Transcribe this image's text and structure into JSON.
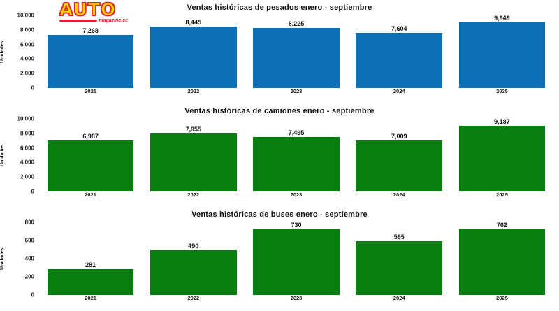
{
  "logo": {
    "title": "AUTO",
    "subtitle": "magazine.ec",
    "accent_red": "#e31e24",
    "accent_yellow": "#ffd400"
  },
  "chart_data": [
    {
      "type": "bar",
      "title": "Ventas históricas de pesados enero - septiembre",
      "xlabel": "",
      "ylabel": "Unidades",
      "categories": [
        "2021",
        "2022",
        "2023",
        "2024",
        "2025"
      ],
      "values": [
        7268,
        8445,
        8225,
        7604,
        9949
      ],
      "value_labels": [
        "7,268",
        "8,445",
        "8,225",
        "7,604",
        "9,949"
      ],
      "ylim": [
        0,
        10000
      ],
      "yticks": [
        {
          "label": "0",
          "value": 0
        },
        {
          "label": "2,000",
          "value": 2000
        },
        {
          "label": "4,000",
          "value": 4000
        },
        {
          "label": "6,000",
          "value": 6000
        },
        {
          "label": "8,000",
          "value": 8000
        },
        {
          "label": "10,000",
          "value": 10000
        }
      ],
      "bar_color": "#0e6fb4",
      "grid": false,
      "legend": "none"
    },
    {
      "type": "bar",
      "title": "Ventas históricas de camiones enero - septiembre",
      "xlabel": "",
      "ylabel": "Unidades",
      "categories": [
        "2021",
        "2022",
        "2023",
        "2024",
        "2025"
      ],
      "values": [
        6987,
        7955,
        7495,
        7009,
        9187
      ],
      "value_labels": [
        "6,987",
        "7,955",
        "7,495",
        "7,009",
        "9,187"
      ],
      "ylim": [
        0,
        10000
      ],
      "yticks": [
        {
          "label": "0",
          "value": 0
        },
        {
          "label": "2,000",
          "value": 2000
        },
        {
          "label": "4,000",
          "value": 4000
        },
        {
          "label": "6,000",
          "value": 6000
        },
        {
          "label": "8,000",
          "value": 8000
        },
        {
          "label": "10,000",
          "value": 10000
        }
      ],
      "bar_color": "#087d10",
      "grid": false,
      "legend": "none"
    },
    {
      "type": "bar",
      "title": "Ventas históricas de buses enero - septiembre",
      "xlabel": "",
      "ylabel": "Unidades",
      "categories": [
        "2021",
        "2022",
        "2023",
        "2024",
        "2025"
      ],
      "values": [
        281,
        490,
        730,
        595,
        762
      ],
      "value_labels": [
        "281",
        "490",
        "730",
        "595",
        "762"
      ],
      "ylim": [
        0,
        800
      ],
      "yticks": [
        {
          "label": "0",
          "value": 0
        },
        {
          "label": "200",
          "value": 200
        },
        {
          "label": "400",
          "value": 400
        },
        {
          "label": "600",
          "value": 600
        },
        {
          "label": "800",
          "value": 800
        }
      ],
      "bar_color": "#087d10",
      "grid": false,
      "legend": "none"
    }
  ]
}
